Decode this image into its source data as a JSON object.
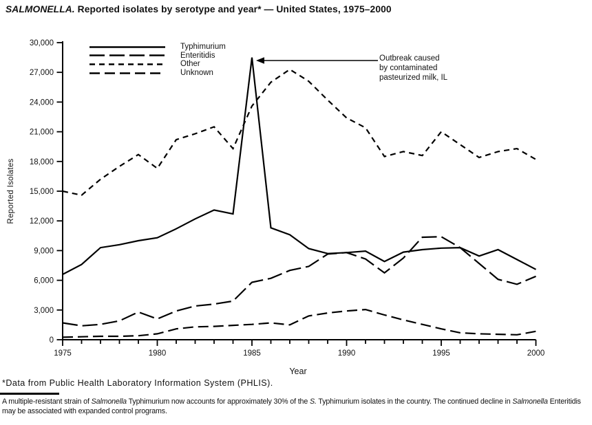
{
  "title": {
    "segments": [
      {
        "text": "SALMONELLA.",
        "italic": true
      },
      {
        "text": " Reported isolates by serotype and year* — United States, 1975–2000",
        "italic": false
      }
    ]
  },
  "y_axis": {
    "label": "Reported Isolates",
    "ticks": [
      {
        "value": 0,
        "label": "0"
      },
      {
        "value": 3000,
        "label": "3,000"
      },
      {
        "value": 6000,
        "label": "6,000"
      },
      {
        "value": 9000,
        "label": "9,000"
      },
      {
        "value": 12000,
        "label": "12,000"
      },
      {
        "value": 15000,
        "label": "15,000"
      },
      {
        "value": 18000,
        "label": "18,000"
      },
      {
        "value": 21000,
        "label": "21,000"
      },
      {
        "value": 24000,
        "label": "24,000"
      },
      {
        "value": 27000,
        "label": "27,000"
      },
      {
        "value": 30000,
        "label": "30,000"
      }
    ]
  },
  "x_axis": {
    "label": "Year",
    "labeled_ticks": [
      1975,
      1980,
      1985,
      1990,
      1995,
      2000
    ],
    "minor_tick_interval": 1
  },
  "legend": {
    "items": [
      {
        "label": "Typhimurium",
        "line_style": "solid"
      },
      {
        "label": "Enteritidis",
        "line_style": "long-dash"
      },
      {
        "label": "Other",
        "line_style": "short-dash"
      },
      {
        "label": "Unknown",
        "line_style": "medium-dash"
      }
    ]
  },
  "annotation": {
    "lines": [
      "Outbreak caused",
      "by contaminated",
      "pasteurized milk, IL"
    ],
    "points_to_year": 1985,
    "points_to_value": 28500
  },
  "footnote_phlis": {
    "segments": [
      {
        "text": "*Data from Public Health Laboratory Information System (PHLIS).",
        "italic": false
      }
    ]
  },
  "footnote_paragraph": {
    "segments": [
      {
        "text": "A multiple-resistant strain of ",
        "italic": false
      },
      {
        "text": "Salmonella",
        "italic": true
      },
      {
        "text": " Typhimurium now accounts for approximately 30% of the ",
        "italic": false
      },
      {
        "text": "S.",
        "italic": true
      },
      {
        "text": " Typhimurium isolates in the country. The continued decline in ",
        "italic": false
      },
      {
        "text": "Salmonella",
        "italic": true
      },
      {
        "text": " Enteritidis may be associated with expanded control programs.",
        "italic": false
      }
    ]
  },
  "colors": {
    "line": "#000000",
    "background": "#ffffff",
    "text": "#111111"
  },
  "chart_data": {
    "type": "line",
    "title": "SALMONELLA. Reported isolates by serotype and year* — United States, 1975–2000",
    "xlabel": "Year",
    "ylabel": "Reported Isolates",
    "xlim": [
      1975,
      2000
    ],
    "ylim": [
      0,
      30000
    ],
    "grid": false,
    "legend_position": "top-left",
    "x": [
      1975,
      1976,
      1977,
      1978,
      1979,
      1980,
      1981,
      1982,
      1983,
      1984,
      1985,
      1986,
      1987,
      1988,
      1989,
      1990,
      1991,
      1992,
      1993,
      1994,
      1995,
      1996,
      1997,
      1998,
      1999,
      2000
    ],
    "series": [
      {
        "name": "Typhimurium",
        "line_style": "solid",
        "values": [
          6600,
          7600,
          9300,
          9600,
          10000,
          10300,
          11200,
          12200,
          13100,
          12700,
          28500,
          11300,
          10600,
          9200,
          8700,
          8800,
          8950,
          7900,
          8850,
          9100,
          9250,
          9300,
          8450,
          9100,
          8100,
          7100
        ]
      },
      {
        "name": "Enteritidis",
        "line_style": "long-dash",
        "values": [
          1700,
          1400,
          1550,
          1900,
          2800,
          2100,
          2900,
          3400,
          3600,
          3900,
          5800,
          6200,
          7000,
          7400,
          8650,
          8800,
          8150,
          6750,
          8250,
          10350,
          10400,
          9300,
          7700,
          6100,
          5600,
          6400
        ]
      },
      {
        "name": "Other",
        "line_style": "short-dash",
        "values": [
          15000,
          14600,
          16200,
          17500,
          18700,
          17300,
          20200,
          20800,
          21500,
          19300,
          23600,
          26000,
          27300,
          26100,
          24200,
          22400,
          21400,
          18500,
          19000,
          18600,
          21000,
          19700,
          18400,
          19000,
          19300,
          18200
        ]
      },
      {
        "name": "Unknown",
        "line_style": "medium-dash",
        "values": [
          250,
          300,
          350,
          350,
          400,
          600,
          1100,
          1300,
          1350,
          1450,
          1550,
          1700,
          1500,
          2400,
          2700,
          2900,
          3050,
          2500,
          2000,
          1550,
          1100,
          700,
          600,
          550,
          500,
          850
        ]
      }
    ]
  }
}
